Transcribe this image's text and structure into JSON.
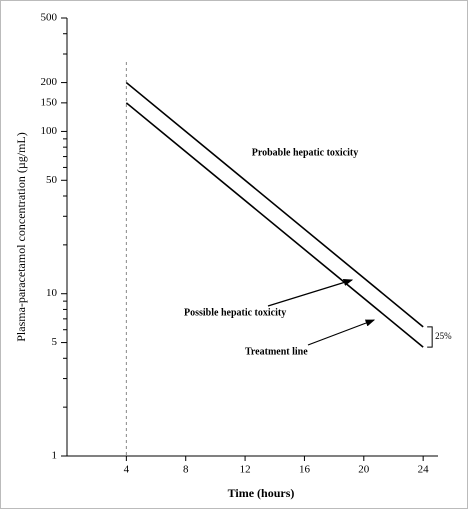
{
  "chart_data": {
    "type": "line",
    "ylabel": "Plasma-paracetamol concentration (µg/mL)",
    "xlabel": "Time (hours)",
    "log_y": true,
    "xlim": [
      0,
      25
    ],
    "ylim": [
      1,
      500
    ],
    "xticks": [
      4,
      8,
      12,
      16,
      20,
      24
    ],
    "yticks": [
      1,
      5,
      10,
      50,
      100,
      150,
      200,
      500
    ],
    "yminor_ticks": [
      2,
      3,
      4,
      6,
      7,
      8,
      9,
      20,
      30,
      40,
      60,
      70,
      80,
      90,
      300,
      400
    ],
    "reference_x": 4,
    "series": [
      {
        "name": "Possible hepatic toxicity",
        "color": "#000000",
        "x": [
          4,
          24
        ],
        "values": [
          200,
          6.25
        ]
      },
      {
        "name": "Treatment line",
        "color": "#000000",
        "x": [
          4,
          24
        ],
        "values": [
          150,
          4.69
        ]
      }
    ],
    "region_label": "Probable hepatic toxicity",
    "gap_label": "25%"
  }
}
